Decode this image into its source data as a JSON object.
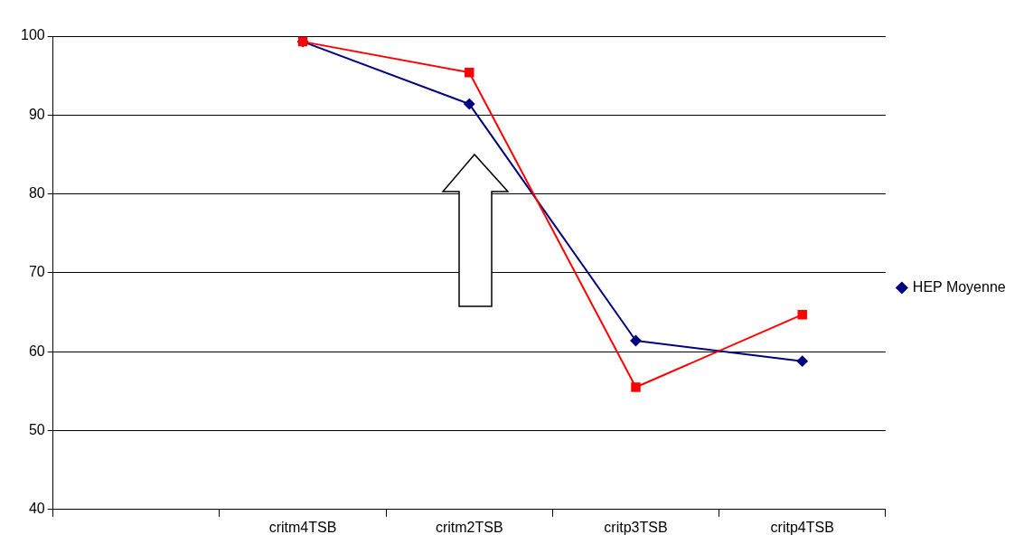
{
  "chart_data": {
    "type": "line",
    "categories": [
      null,
      "critm4TSB",
      "critm2TSB",
      "critp3TSB",
      "critp4TSB"
    ],
    "series": [
      {
        "name": "HEP Moyenne",
        "color": "#000080",
        "values": [
          null,
          99.3,
          91.4,
          61.4,
          58.8
        ]
      },
      {
        "color": "#ff0000",
        "marker": "square",
        "values": [
          null,
          99.3,
          95.4,
          55.5,
          64.7
        ]
      }
    ],
    "ylim": [
      40,
      100
    ],
    "yticks": [
      40,
      50,
      60,
      70,
      80,
      90,
      100
    ],
    "grid": "y",
    "legend": "right",
    "marker": "diamond",
    "line_style": "solid"
  }
}
